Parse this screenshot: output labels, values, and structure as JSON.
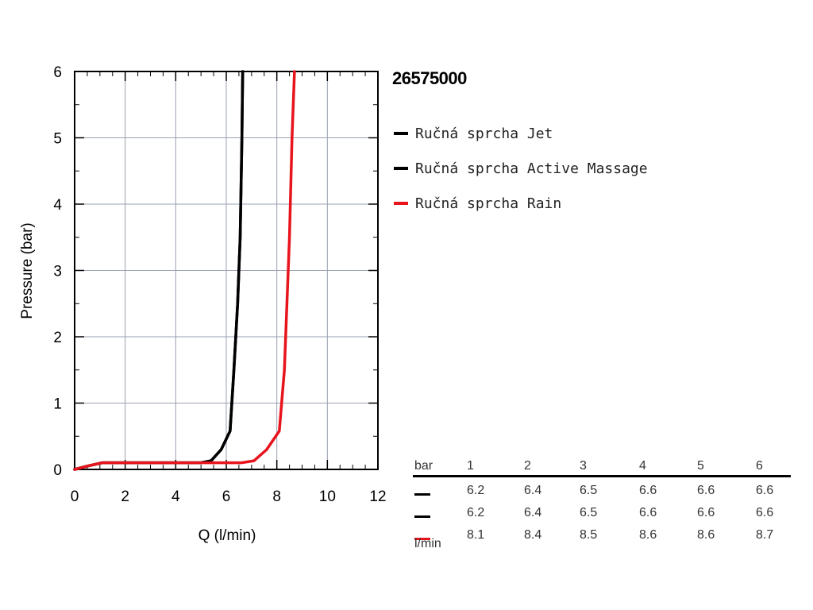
{
  "chart_data": {
    "type": "line",
    "title": "26575000",
    "xlabel": "Q (l/min)",
    "ylabel": "Pressure (bar)",
    "xlim": [
      0,
      12
    ],
    "ylim": [
      0,
      6
    ],
    "xticks": [
      "0",
      "2",
      "4",
      "6",
      "8",
      "10",
      "12"
    ],
    "yticks": [
      "0",
      "1",
      "2",
      "3",
      "4",
      "5",
      "6"
    ],
    "grid": true,
    "legend_placement": "right",
    "series": [
      {
        "name": "Ručná sprcha Jet",
        "color": "#000000",
        "points": [
          [
            0,
            0
          ],
          [
            0.5,
            0.05
          ],
          [
            1.1,
            0.1
          ],
          [
            3,
            0.1
          ],
          [
            5,
            0.1
          ],
          [
            5.4,
            0.13
          ],
          [
            5.8,
            0.3
          ],
          [
            6.15,
            0.58
          ],
          [
            6.3,
            1.5
          ],
          [
            6.45,
            2.5
          ],
          [
            6.55,
            3.5
          ],
          [
            6.62,
            5
          ],
          [
            6.65,
            6
          ]
        ]
      },
      {
        "name": "Ručná sprcha Active Massage",
        "color": "#000000",
        "points": [
          [
            0,
            0
          ],
          [
            0.5,
            0.05
          ],
          [
            1.1,
            0.1
          ],
          [
            3,
            0.1
          ],
          [
            5,
            0.1
          ],
          [
            5.4,
            0.13
          ],
          [
            5.8,
            0.3
          ],
          [
            6.15,
            0.58
          ],
          [
            6.3,
            1.5
          ],
          [
            6.45,
            2.5
          ],
          [
            6.55,
            3.5
          ],
          [
            6.62,
            5
          ],
          [
            6.65,
            6
          ]
        ]
      },
      {
        "name": "Ručná sprcha Rain",
        "color": "#e8141c",
        "points": [
          [
            0,
            0
          ],
          [
            0.5,
            0.05
          ],
          [
            1.1,
            0.1
          ],
          [
            3,
            0.1
          ],
          [
            6.6,
            0.1
          ],
          [
            7.1,
            0.13
          ],
          [
            7.6,
            0.3
          ],
          [
            8.1,
            0.58
          ],
          [
            8.3,
            1.5
          ],
          [
            8.4,
            2.5
          ],
          [
            8.5,
            3.5
          ],
          [
            8.6,
            5
          ],
          [
            8.7,
            6
          ]
        ]
      }
    ]
  },
  "table": {
    "header_label": "bar",
    "columns": [
      "1",
      "2",
      "3",
      "4",
      "5",
      "6"
    ],
    "rows": [
      {
        "color": "#000000",
        "values": [
          "6.2",
          "6.4",
          "6.5",
          "6.6",
          "6.6",
          "6.6"
        ]
      },
      {
        "color": "#000000",
        "values": [
          "6.2",
          "6.4",
          "6.5",
          "6.6",
          "6.6",
          "6.6"
        ]
      },
      {
        "color": "#e8141c",
        "values": [
          "8.1",
          "8.4",
          "8.5",
          "8.6",
          "8.6",
          "8.7"
        ]
      }
    ],
    "unit_label": "l/min"
  }
}
